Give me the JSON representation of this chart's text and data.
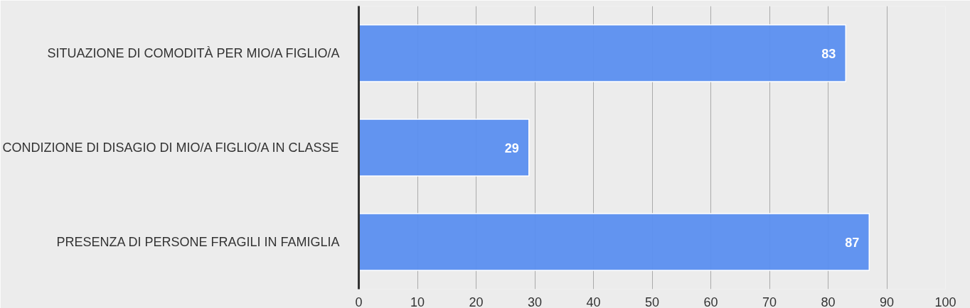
{
  "chart_data": {
    "type": "bar",
    "orientation": "horizontal",
    "categories": [
      "SITUAZIONE DI COMODITÀ PER MIO/A FIGLIO/A",
      "CONDIZIONE DI DISAGIO DI MIO/A FIGLIO/A IN CLASSE",
      "PRESENZA DI PERSONE FRAGILI IN FAMIGLIA"
    ],
    "values": [
      83,
      29,
      87
    ],
    "color": "#5b8ff0",
    "data_labels": true,
    "xlim": [
      0,
      100
    ],
    "xticks": [
      0,
      10,
      20,
      30,
      40,
      50,
      60,
      70,
      80,
      90,
      100
    ],
    "grid": "x"
  }
}
